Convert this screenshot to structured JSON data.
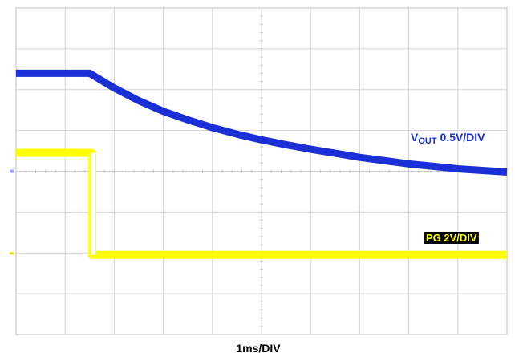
{
  "chart_data": {
    "type": "line",
    "title": "",
    "xlabel": "1ms/DIV",
    "ylabel": "",
    "xlim": [
      0,
      10
    ],
    "ylim": [
      0,
      8
    ],
    "divisions": {
      "x": 10,
      "y": 8
    },
    "grid": true,
    "series": [
      {
        "name": "VOUT 0.5V/DIV",
        "label_main": "V",
        "label_sub": "OUT",
        "label_rest": " 0.5V/DIV",
        "color": "#1a2fd6",
        "x": [
          0,
          1.5,
          2,
          2.5,
          3,
          3.5,
          4,
          4.5,
          5,
          5.5,
          6,
          6.5,
          7,
          7.5,
          8,
          8.5,
          9,
          9.5,
          10
        ],
        "y": [
          6.4,
          6.4,
          6.04,
          5.73,
          5.47,
          5.26,
          5.07,
          4.91,
          4.77,
          4.65,
          4.54,
          4.44,
          4.34,
          4.26,
          4.18,
          4.12,
          4.06,
          4.02,
          3.98
        ]
      },
      {
        "name": "PG 2V/DIV",
        "color": "#ffff00",
        "x": [
          0,
          1.55,
          1.55,
          10
        ],
        "y": [
          4.45,
          4.45,
          1.95,
          1.95
        ]
      }
    ]
  }
}
